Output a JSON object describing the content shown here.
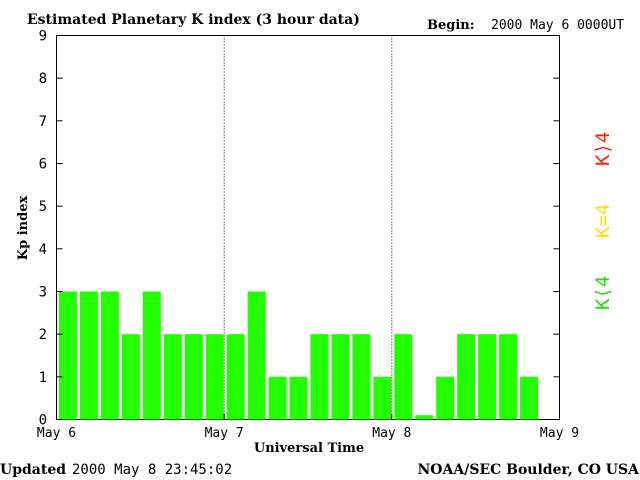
{
  "header": {
    "title": "Estimated Planetary K index (3 hour data)",
    "begin_label": "Begin:",
    "begin_value": "2000 May 6 0000UT"
  },
  "footer": {
    "updated_label": "Updated",
    "updated_value": "2000 May  8 23:45:02",
    "credit": "NOAA/SEC Boulder, CO USA"
  },
  "legend": {
    "items": [
      {
        "label": "K⟨4",
        "color": "#22dd00"
      },
      {
        "label": "K=4",
        "color": "#ffdd00"
      },
      {
        "label": "K⟩4",
        "color": "#ff2200"
      }
    ]
  },
  "chart_data": {
    "type": "bar",
    "title": "Estimated Planetary K index (3 hour data)",
    "xlabel": "Universal Time",
    "ylabel": "Kp index",
    "ylim": [
      0,
      9
    ],
    "yticks": [
      0,
      1,
      2,
      3,
      4,
      5,
      6,
      7,
      8,
      9
    ],
    "x_range_days": [
      0,
      3
    ],
    "x_tick_labels": [
      "May 6",
      "May 7",
      "May 8",
      "May 9"
    ],
    "day_separators": [
      1,
      2
    ],
    "bar_color": "#22ff00",
    "values": [
      3,
      3,
      3,
      2,
      3,
      2,
      2,
      2,
      2,
      3,
      1,
      1,
      2,
      2,
      2,
      1,
      2,
      0.1,
      1,
      2,
      2,
      2,
      1
    ],
    "categories": [
      "May 6 00UT",
      "May 6 03UT",
      "May 6 06UT",
      "May 6 09UT",
      "May 6 12UT",
      "May 6 15UT",
      "May 6 18UT",
      "May 6 21UT",
      "May 7 00UT",
      "May 7 03UT",
      "May 7 06UT",
      "May 7 09UT",
      "May 7 12UT",
      "May 7 15UT",
      "May 7 18UT",
      "May 7 21UT",
      "May 8 00UT",
      "May 8 03UT",
      "May 8 06UT",
      "May 8 09UT",
      "May 8 12UT",
      "May 8 15UT",
      "May 8 18UT"
    ],
    "grid": false
  }
}
